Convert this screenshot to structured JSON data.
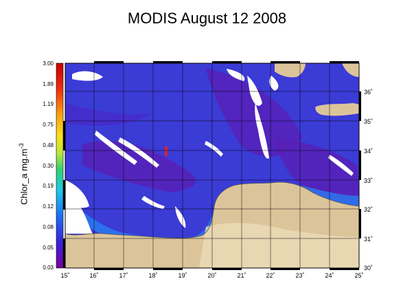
{
  "title": "MODIS August 12 2008",
  "colorbar": {
    "label": "Chlor_a mg.m",
    "label_superscript": "-3",
    "ticks": [
      "3.00",
      "1.89",
      "1.19",
      "0.75",
      "0.48",
      "0.30",
      "0.19",
      "0.12",
      "0.08",
      "0.05",
      "0.03"
    ]
  },
  "map": {
    "lon_ticks": [
      "15˚",
      "16˚",
      "17˚",
      "18˚",
      "19˚",
      "20˚",
      "21˚",
      "22˚",
      "23˚",
      "24˚",
      "25˚"
    ],
    "lat_ticks": [
      "36˚",
      "35˚",
      "34˚",
      "33˚",
      "32˚",
      "31˚",
      "30˚"
    ]
  },
  "colors": {
    "sea": "#3b3bd6",
    "sea_dark": "#5a1fb5",
    "land": "#dcc49a",
    "land_light": "#ecdcb8",
    "cloud": "#ffffff",
    "grid": "#000000"
  }
}
